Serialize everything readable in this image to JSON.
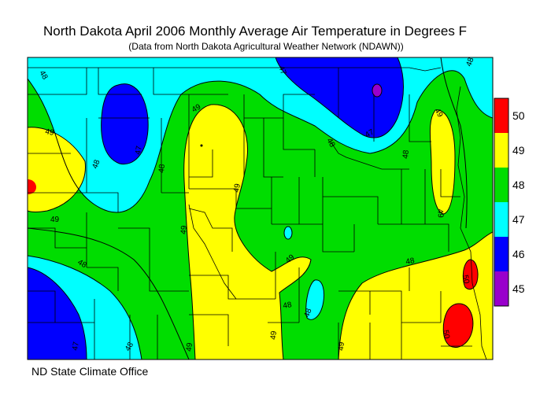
{
  "header": {
    "title": "North Dakota April 2006 Monthly Average Air Temperature in Degrees F",
    "subtitle": "(Data from North Dakota Agricultural Weather Network (NDAWN))"
  },
  "footer": {
    "credit": "ND State Climate Office"
  },
  "legend": {
    "bins": [
      {
        "label": "50",
        "color": "#ff0000"
      },
      {
        "label": "49",
        "color": "#ffff00"
      },
      {
        "label": "48",
        "color": "#00dd00"
      },
      {
        "label": "47",
        "color": "#00ffff"
      },
      {
        "label": "46",
        "color": "#0000ff"
      },
      {
        "label": "45",
        "color": "#9900cc"
      }
    ]
  },
  "contour_labels": [
    "48",
    "48",
    "47",
    "49",
    "49",
    "48",
    "47",
    "48",
    "49",
    "48",
    "47",
    "48",
    "48",
    "49",
    "49",
    "49",
    "49",
    "49",
    "49",
    "48",
    "48",
    "48",
    "47",
    "48",
    "49",
    "49",
    "50",
    "50"
  ],
  "chart_data": {
    "type": "heatmap",
    "title": "North Dakota April 2006 Monthly Average Air Temperature in Degrees F",
    "subtitle": "(Data from North Dakota Agricultural Weather Network (NDAWN))",
    "units": "Degrees F",
    "legend_values": [
      50,
      49,
      48,
      47,
      46,
      45
    ],
    "legend_placement": "right",
    "contour_levels": [
      46,
      47,
      48,
      49,
      50
    ]
  }
}
